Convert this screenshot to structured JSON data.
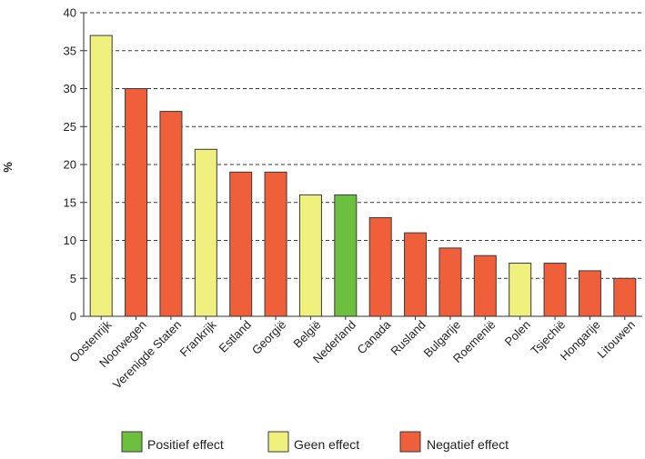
{
  "chart_data": {
    "type": "bar",
    "ylabel": "%",
    "ylim": [
      0,
      40
    ],
    "yticks": [
      0,
      5,
      10,
      15,
      20,
      25,
      30,
      35,
      40
    ],
    "grid": "horizontal-dashed",
    "categories": [
      "Oostenrijk",
      "Noorwegen",
      "Verenigde Staten",
      "Frankrijk",
      "Estland",
      "Georgië",
      "België",
      "Nederland",
      "Canada",
      "Rusland",
      "Bulgarije",
      "Roemenië",
      "Polen",
      "Tsjechië",
      "Hongarije",
      "Litouwen"
    ],
    "values": [
      37,
      30,
      27,
      22,
      19,
      19,
      16,
      16,
      13,
      11,
      9,
      8,
      7,
      7,
      6,
      5
    ],
    "effects": [
      "geen",
      "negatief",
      "negatief",
      "geen",
      "negatief",
      "negatief",
      "geen",
      "positief",
      "negatief",
      "negatief",
      "negatief",
      "negatief",
      "geen",
      "negatief",
      "negatief",
      "negatief"
    ],
    "colors": {
      "positief": "#6cbf3f",
      "geen": "#eff07e",
      "negatief": "#ee5f3a"
    },
    "legend": {
      "placement": "bottom",
      "items": [
        {
          "key": "positief",
          "label": "Positief effect"
        },
        {
          "key": "geen",
          "label": "Geen effect"
        },
        {
          "key": "negatief",
          "label": "Negatief effect"
        }
      ]
    }
  }
}
